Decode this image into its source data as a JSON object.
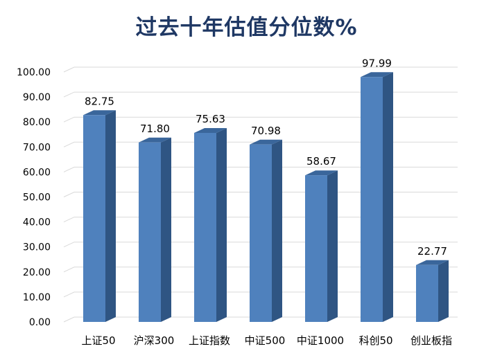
{
  "chart_data": {
    "type": "bar",
    "title": "过去十年估值分位数%",
    "categories": [
      "上证50",
      "沪深300",
      "上证指数",
      "中证500",
      "中证1000",
      "科创50",
      "创业板指"
    ],
    "values": [
      82.75,
      71.8,
      75.63,
      70.98,
      58.67,
      97.99,
      22.77
    ],
    "value_labels": [
      "82.75",
      "71.80",
      "75.63",
      "70.98",
      "58.67",
      "97.99",
      "22.77"
    ],
    "ylim": [
      0,
      100
    ],
    "y_ticks": [
      "0.00",
      "10.00",
      "20.00",
      "30.00",
      "40.00",
      "50.00",
      "60.00",
      "70.00",
      "80.00",
      "90.00",
      "100.00"
    ],
    "grid": true,
    "style": "3d-bar",
    "colors": {
      "bar_front": "#4f81bd",
      "bar_side": "#2f5583",
      "bar_top": "#3a669b",
      "grid": "#d9d9d9",
      "title": "#1f3864"
    }
  }
}
